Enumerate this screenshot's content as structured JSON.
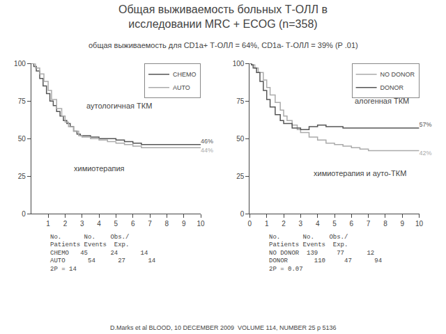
{
  "title": "Общая выживаемость больных Т-ОЛЛ в\nисследовании MRC + ECOG (n=358)",
  "subtitle": "общая выживаемость для CD1a+ Т-ОЛЛ = 64%, CD1a- Т-ОЛЛ = 39% (P .01)",
  "annotations": [
    "D.Marks et al BLOOD, 10 DECEMBER 2009  VOLUME 114, NUMBER 25 p 5136"
  ],
  "chart_data": [
    {
      "type": "step",
      "series": [
        {
          "name": "CHEMO",
          "color": "#555555",
          "x": [
            0,
            0.15,
            0.3,
            0.5,
            0.7,
            0.9,
            1.1,
            1.3,
            1.5,
            1.7,
            1.9,
            2.1,
            2.3,
            2.5,
            2.7,
            2.9,
            3.5,
            4.0,
            4.5,
            5.0,
            5.5,
            6.0,
            6.5,
            7.0,
            8.0,
            9.0,
            10.0
          ],
          "values": [
            100,
            98,
            95,
            90,
            85,
            80,
            75,
            72,
            68,
            65,
            62,
            60,
            58,
            55,
            53,
            52,
            51,
            50,
            50,
            49,
            48,
            47,
            46,
            46,
            46,
            46,
            46
          ],
          "value_labels": [
            null,
            null,
            null,
            null,
            null,
            null,
            null,
            null,
            null,
            null,
            null,
            null,
            null,
            null,
            null,
            null,
            null,
            null,
            null,
            null,
            null,
            null,
            null,
            null,
            null,
            null,
            "46%"
          ]
        },
        {
          "name": "AUTO",
          "color": "#aaaaaa",
          "x": [
            0,
            0.25,
            0.5,
            0.75,
            1.0,
            1.2,
            1.5,
            1.8,
            2.0,
            2.2,
            2.5,
            2.8,
            3.0,
            3.5,
            4.0,
            4.5,
            5.0,
            5.5,
            6.0,
            6.5,
            7.0,
            8.0,
            9.0,
            10.0
          ],
          "values": [
            100,
            97,
            93,
            88,
            82,
            76,
            70,
            65,
            61,
            58,
            55,
            52,
            51,
            50,
            49,
            48,
            47,
            46,
            45,
            44,
            44,
            44,
            44,
            44
          ],
          "value_labels": [
            null,
            null,
            null,
            null,
            null,
            null,
            null,
            null,
            null,
            null,
            null,
            null,
            null,
            null,
            null,
            null,
            null,
            null,
            null,
            null,
            null,
            null,
            null,
            "44%"
          ]
        }
      ],
      "xlim": [
        0,
        10
      ],
      "ylim": [
        0,
        100
      ],
      "xticks": [
        1,
        2,
        3,
        4,
        5,
        6,
        7,
        8,
        9,
        10
      ],
      "yticks": [
        0,
        25,
        50,
        75,
        100
      ],
      "grid": false,
      "legend": "upper right",
      "data_labels": true,
      "annotations": [
        {
          "text": "аутологичная ТКМ",
          "x": 5.2,
          "y": 72
        },
        {
          "text": "химиотерапия",
          "x": 4.0,
          "y": 30
        },
        "No.      No.    Obs./",
        "Patients Events  Exp.",
        "CHEMO   45      24      14",
        "AUTO      54      27      14",
        "2P = 14"
      ]
    },
    {
      "type": "step",
      "series": [
        {
          "name": "NO DONOR",
          "color": "#aaaaaa",
          "x": [
            0,
            0.1,
            0.3,
            0.5,
            0.8,
            1.0,
            1.2,
            1.5,
            1.8,
            2.0,
            2.2,
            2.5,
            2.8,
            3.0,
            3.5,
            4.0,
            4.5,
            5.0,
            5.5,
            6.0,
            6.5,
            7.0,
            7.5,
            8.0,
            9.0,
            10.0
          ],
          "values": [
            100,
            99,
            97,
            94,
            89,
            84,
            79,
            74,
            69,
            65,
            62,
            59,
            56,
            54,
            51,
            49,
            47,
            46,
            45,
            44,
            43,
            42,
            42,
            42,
            42,
            42
          ],
          "value_labels": [
            null,
            null,
            null,
            null,
            null,
            null,
            null,
            null,
            null,
            null,
            null,
            null,
            null,
            null,
            null,
            null,
            null,
            null,
            null,
            null,
            null,
            null,
            null,
            null,
            null,
            "42%"
          ]
        },
        {
          "name": "DONOR",
          "color": "#555555",
          "x": [
            0,
            0.1,
            0.2,
            0.4,
            0.6,
            0.8,
            1.0,
            1.2,
            1.5,
            1.8,
            2.0,
            2.5,
            3.0,
            3.5,
            4.0,
            4.5,
            5.0,
            5.5,
            6.0,
            6.5,
            7.0,
            7.5,
            8.0,
            9.0,
            10.0
          ],
          "values": [
            100,
            99,
            97,
            94,
            88,
            82,
            76,
            71,
            66,
            62,
            60,
            57,
            56,
            58,
            59,
            58,
            58,
            57,
            57,
            57,
            57,
            57,
            57,
            57,
            57
          ],
          "value_labels": [
            null,
            null,
            null,
            null,
            null,
            null,
            null,
            null,
            null,
            null,
            null,
            null,
            null,
            null,
            null,
            null,
            null,
            null,
            null,
            null,
            null,
            null,
            null,
            null,
            "57%"
          ]
        }
      ],
      "xlim": [
        0,
        10
      ],
      "ylim": [
        0,
        100
      ],
      "xticks": [
        0,
        1,
        2,
        3,
        4,
        5,
        6,
        7,
        8,
        9,
        10
      ],
      "yticks": [
        0,
        25,
        50,
        75,
        100
      ],
      "grid": false,
      "legend": "upper right",
      "data_labels": true,
      "annotations": [
        {
          "text": "алогенная ТКМ",
          "x": 7.8,
          "y": 75
        },
        {
          "text": "химиотерапия и ауто-ТКМ",
          "x": 6.5,
          "y": 27
        },
        "No.      No.    Obs./",
        "Patients Events  Exp.",
        "NO DONOR  139     77      12",
        "DONOR       110     47      94",
        "2P = 0.07"
      ]
    }
  ]
}
